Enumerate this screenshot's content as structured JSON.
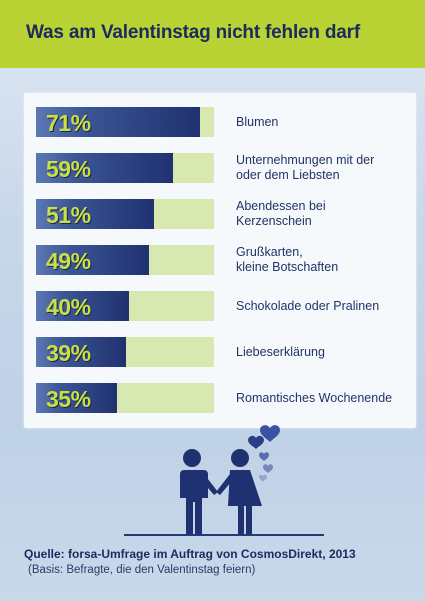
{
  "title": "Was am Valentinstag nicht fehlen darf",
  "source": "Quelle: forsa-Umfrage im Auftrag von CosmosDirekt, 2013",
  "basis": "(Basis: Befragte, die den Valentinstag feiern)",
  "chart_data": {
    "type": "bar",
    "orientation": "horizontal",
    "categories": [
      "Blumen",
      "Unternehmungen mit der\noder dem Liebsten",
      "Abendessen bei\nKerzenschein",
      "Grußkarten,\nkleine Botschaften",
      "Schokolade oder Pralinen",
      "Liebeserklärung",
      "Romantisches Wochenende"
    ],
    "values": [
      71,
      59,
      51,
      49,
      40,
      39,
      35
    ],
    "value_labels": [
      "71%",
      "59%",
      "51%",
      "49%",
      "40%",
      "39%",
      "35%"
    ],
    "xlim": [
      0,
      100
    ],
    "unit": "%"
  },
  "colors": {
    "header": "#b9d234",
    "bar": "#1f3170",
    "track": "#d7e8b0",
    "value_text": "#c8e043",
    "text": "#1a2b5e"
  }
}
